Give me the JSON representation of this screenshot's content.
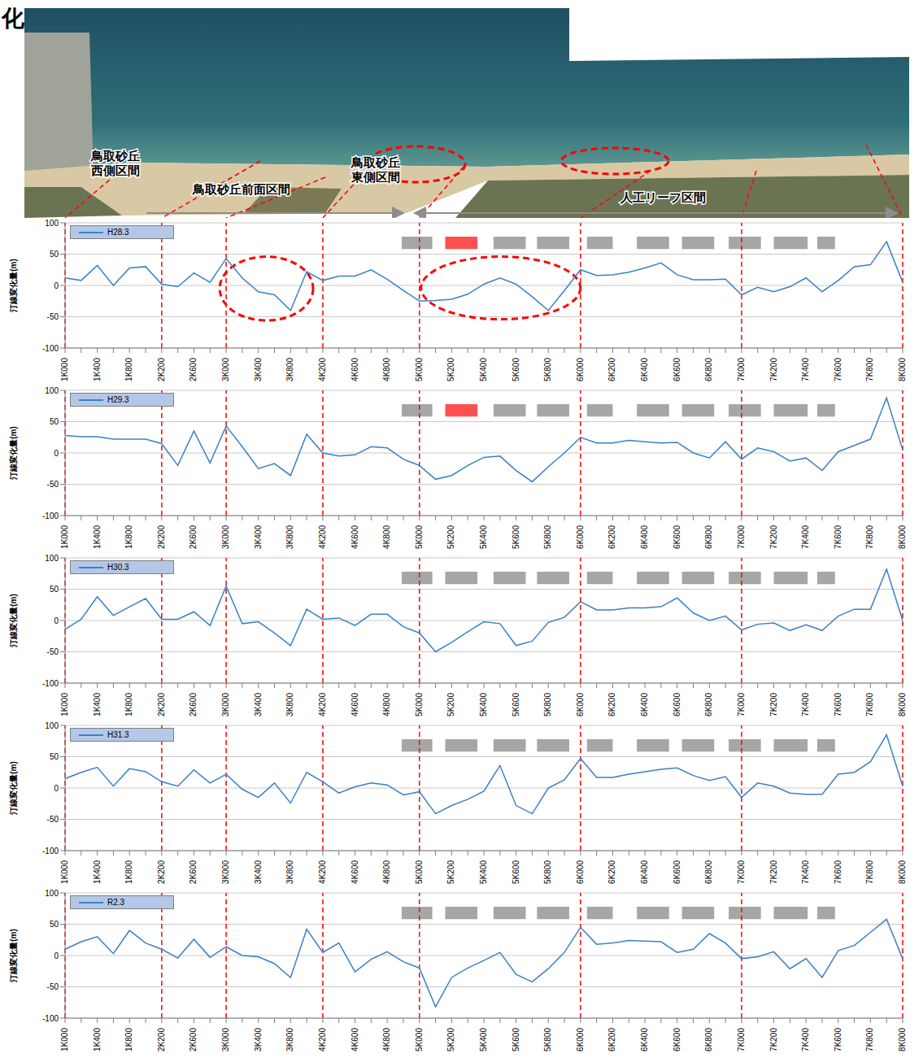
{
  "photo": {
    "heading": "化",
    "sections": [
      {
        "lines": [
          "鳥取砂丘",
          "西側区間"
        ]
      },
      {
        "lines": [
          "鳥取砂丘前面区間"
        ]
      },
      {
        "lines": [
          "鳥取砂丘",
          "東側区間"
        ]
      },
      {
        "lines": [
          "人工リーフ区間"
        ]
      }
    ]
  },
  "chart_data": [
    {
      "type": "line",
      "y_label": "汀線変化量(m)",
      "categories": [
        "1K000",
        null,
        "1K400",
        null,
        "1K800",
        null,
        "2K200",
        null,
        "2K600",
        null,
        "3K000",
        null,
        "3K400",
        null,
        "3K800",
        null,
        "4K200",
        null,
        "4K600",
        null,
        "4K800",
        null,
        "5K000",
        null,
        "5K200",
        null,
        "5K400",
        null,
        "5K600",
        null,
        "5K800",
        null,
        "6K000",
        null,
        "6K200",
        null,
        "6K400",
        null,
        "6K600",
        null,
        "6K800",
        null,
        "7K000",
        null,
        "7K200",
        null,
        "7K400",
        null,
        "7K600",
        null,
        "7K800",
        null,
        "8K000"
      ],
      "series": [
        {
          "name": "H28.3",
          "color": "#3a80c8",
          "values": [
            12,
            8,
            32,
            0,
            28,
            30,
            2,
            -2,
            20,
            5,
            43,
            12,
            -10,
            -15,
            -40,
            22,
            8,
            15,
            15,
            25,
            10,
            -8,
            -25,
            -24,
            -22,
            -14,
            2,
            12,
            2,
            -18,
            -40,
            -8,
            25,
            16,
            17,
            21,
            28,
            36,
            17,
            9,
            9,
            10,
            -15,
            -3,
            -10,
            -2,
            12,
            -10,
            8,
            30,
            33,
            70,
            5
          ]
        }
      ],
      "ylim": [
        -100,
        100
      ],
      "yticks": [
        -100,
        -50,
        0,
        50,
        100
      ],
      "grid": true,
      "legend": "upper left",
      "boundaries": [
        "1K000",
        "2K200",
        "3K000",
        "4K200",
        "5K000",
        "6K000",
        "7K000",
        "8K000"
      ],
      "reefs": [
        {
          "start": 20.9,
          "end": 22.8,
          "color": "#a6a6a6"
        },
        {
          "start": 23.6,
          "end": 25.6,
          "color": "#ff5050"
        },
        {
          "start": 26.6,
          "end": 28.6,
          "color": "#a6a6a6"
        },
        {
          "start": 29.3,
          "end": 31.3,
          "color": "#a6a6a6"
        },
        {
          "start": 32.4,
          "end": 34.0,
          "color": "#a6a6a6"
        },
        {
          "start": 35.5,
          "end": 37.5,
          "color": "#a6a6a6"
        },
        {
          "start": 38.3,
          "end": 40.3,
          "color": "#a6a6a6"
        },
        {
          "start": 41.2,
          "end": 43.2,
          "color": "#a6a6a6"
        },
        {
          "start": 44.0,
          "end": 46.1,
          "color": "#a6a6a6"
        },
        {
          "start": 46.7,
          "end": 47.8,
          "color": "#a6a6a6"
        }
      ]
    },
    {
      "type": "line",
      "y_label": "汀線変化量(m)",
      "categories": [
        "1K000",
        null,
        "1K400",
        null,
        "1K800",
        null,
        "2K200",
        null,
        "2K600",
        null,
        "3K000",
        null,
        "3K400",
        null,
        "3K800",
        null,
        "4K200",
        null,
        "4K600",
        null,
        "4K800",
        null,
        "5K000",
        null,
        "5K200",
        null,
        "5K400",
        null,
        "5K600",
        null,
        "5K800",
        null,
        "6K000",
        null,
        "6K200",
        null,
        "6K400",
        null,
        "6K600",
        null,
        "6K800",
        null,
        "7K000",
        null,
        "7K200",
        null,
        "7K400",
        null,
        "7K600",
        null,
        "7K800",
        null,
        "8K000"
      ],
      "series": [
        {
          "name": "H29.3",
          "color": "#3a80c8",
          "values": [
            28,
            26,
            26,
            22,
            22,
            22,
            15,
            -20,
            35,
            -16,
            43,
            10,
            -25,
            -17,
            -36,
            30,
            0,
            -5,
            -3,
            10,
            8,
            -10,
            -20,
            -42,
            -36,
            -20,
            -7,
            -5,
            -28,
            -46,
            -22,
            0,
            25,
            16,
            16,
            20,
            18,
            16,
            17,
            0,
            -8,
            18,
            -10,
            8,
            2,
            -13,
            -8,
            -28,
            2,
            12,
            22,
            88,
            5
          ]
        }
      ],
      "ylim": [
        -100,
        100
      ],
      "yticks": [
        -100,
        -50,
        0,
        50,
        100
      ],
      "grid": true,
      "legend": "upper left",
      "boundaries": [
        "1K000",
        "2K200",
        "3K000",
        "4K200",
        "5K000",
        "6K000",
        "7K000",
        "8K000"
      ],
      "reefs": [
        {
          "start": 20.9,
          "end": 22.8,
          "color": "#a6a6a6"
        },
        {
          "start": 23.6,
          "end": 25.6,
          "color": "#ff5050"
        },
        {
          "start": 26.6,
          "end": 28.6,
          "color": "#a6a6a6"
        },
        {
          "start": 29.3,
          "end": 31.3,
          "color": "#a6a6a6"
        },
        {
          "start": 32.4,
          "end": 34.0,
          "color": "#a6a6a6"
        },
        {
          "start": 35.5,
          "end": 37.5,
          "color": "#a6a6a6"
        },
        {
          "start": 38.3,
          "end": 40.3,
          "color": "#a6a6a6"
        },
        {
          "start": 41.2,
          "end": 43.2,
          "color": "#a6a6a6"
        },
        {
          "start": 44.0,
          "end": 46.1,
          "color": "#a6a6a6"
        },
        {
          "start": 46.7,
          "end": 47.8,
          "color": "#a6a6a6"
        }
      ]
    },
    {
      "type": "line",
      "y_label": "汀線変化量(m)",
      "categories": [
        "1K000",
        null,
        "1K400",
        null,
        "1K800",
        null,
        "2K200",
        null,
        "2K600",
        null,
        "3K000",
        null,
        "3K400",
        null,
        "3K800",
        null,
        "4K200",
        null,
        "4K600",
        null,
        "4K800",
        null,
        "5K000",
        null,
        "5K200",
        null,
        "5K400",
        null,
        "5K600",
        null,
        "5K800",
        null,
        "6K000",
        null,
        "6K200",
        null,
        "6K400",
        null,
        "6K600",
        null,
        "6K800",
        null,
        "7K000",
        null,
        "7K200",
        null,
        "7K400",
        null,
        "7K600",
        null,
        "7K800",
        null,
        "8K000"
      ],
      "series": [
        {
          "name": "H30.3",
          "color": "#3a80c8",
          "values": [
            -14,
            2,
            38,
            8,
            22,
            35,
            2,
            2,
            14,
            -8,
            55,
            -5,
            -2,
            -20,
            -40,
            18,
            2,
            4,
            -8,
            10,
            10,
            -10,
            -20,
            -50,
            -35,
            -18,
            -2,
            -5,
            -40,
            -33,
            -3,
            5,
            30,
            17,
            17,
            20,
            20,
            22,
            36,
            12,
            0,
            7,
            -15,
            -6,
            -4,
            -16,
            -7,
            -16,
            7,
            18,
            18,
            82,
            0
          ]
        }
      ],
      "ylim": [
        -100,
        100
      ],
      "yticks": [
        -100,
        -50,
        0,
        50,
        100
      ],
      "grid": true,
      "legend": "upper left",
      "boundaries": [
        "1K000",
        "2K200",
        "3K000",
        "4K200",
        "5K000",
        "6K000",
        "7K000",
        "8K000"
      ],
      "reefs": [
        {
          "start": 20.9,
          "end": 22.8,
          "color": "#a6a6a6"
        },
        {
          "start": 23.6,
          "end": 25.6,
          "color": "#a6a6a6"
        },
        {
          "start": 26.6,
          "end": 28.6,
          "color": "#a6a6a6"
        },
        {
          "start": 29.3,
          "end": 31.3,
          "color": "#a6a6a6"
        },
        {
          "start": 32.4,
          "end": 34.0,
          "color": "#a6a6a6"
        },
        {
          "start": 35.5,
          "end": 37.5,
          "color": "#a6a6a6"
        },
        {
          "start": 38.3,
          "end": 40.3,
          "color": "#a6a6a6"
        },
        {
          "start": 41.2,
          "end": 43.2,
          "color": "#a6a6a6"
        },
        {
          "start": 44.0,
          "end": 46.1,
          "color": "#a6a6a6"
        },
        {
          "start": 46.7,
          "end": 47.8,
          "color": "#a6a6a6"
        }
      ]
    },
    {
      "type": "line",
      "y_label": "汀線変化量(m)",
      "categories": [
        "1K000",
        null,
        "1K400",
        null,
        "1K800",
        null,
        "2K200",
        null,
        "2K600",
        null,
        "3K000",
        null,
        "3K400",
        null,
        "3K800",
        null,
        "4K200",
        null,
        "4K600",
        null,
        "4K800",
        null,
        "5K000",
        null,
        "5K200",
        null,
        "5K400",
        null,
        "5K600",
        null,
        "5K800",
        null,
        "6K000",
        null,
        "6K200",
        null,
        "6K400",
        null,
        "6K600",
        null,
        "6K800",
        null,
        "7K000",
        null,
        "7K200",
        null,
        "7K400",
        null,
        "7K600",
        null,
        "7K800",
        null,
        "8K000"
      ],
      "series": [
        {
          "name": "H31.3",
          "color": "#3a80c8",
          "values": [
            15,
            25,
            33,
            3,
            31,
            26,
            10,
            3,
            29,
            8,
            22,
            -2,
            -15,
            8,
            -24,
            25,
            10,
            -8,
            2,
            8,
            5,
            -11,
            -6,
            -41,
            -28,
            -18,
            -5,
            36,
            -28,
            -41,
            0,
            13,
            47,
            17,
            17,
            22,
            26,
            30,
            32,
            20,
            12,
            18,
            -15,
            8,
            3,
            -8,
            -10,
            -10,
            22,
            25,
            42,
            85,
            3
          ]
        }
      ],
      "ylim": [
        -100,
        100
      ],
      "yticks": [
        -100,
        -50,
        0,
        50,
        100
      ],
      "grid": true,
      "legend": "upper left",
      "boundaries": [
        "1K000",
        "2K200",
        "3K000",
        "4K200",
        "5K000",
        "6K000",
        "7K000",
        "8K000"
      ],
      "reefs": [
        {
          "start": 20.9,
          "end": 22.8,
          "color": "#a6a6a6"
        },
        {
          "start": 23.6,
          "end": 25.6,
          "color": "#a6a6a6"
        },
        {
          "start": 26.6,
          "end": 28.6,
          "color": "#a6a6a6"
        },
        {
          "start": 29.3,
          "end": 31.3,
          "color": "#a6a6a6"
        },
        {
          "start": 32.4,
          "end": 34.0,
          "color": "#a6a6a6"
        },
        {
          "start": 35.5,
          "end": 37.5,
          "color": "#a6a6a6"
        },
        {
          "start": 38.3,
          "end": 40.3,
          "color": "#a6a6a6"
        },
        {
          "start": 41.2,
          "end": 43.2,
          "color": "#a6a6a6"
        },
        {
          "start": 44.0,
          "end": 46.1,
          "color": "#a6a6a6"
        },
        {
          "start": 46.7,
          "end": 47.8,
          "color": "#a6a6a6"
        }
      ]
    },
    {
      "type": "line",
      "y_label": "汀線変化量(m)",
      "categories": [
        "1K000",
        null,
        "1K400",
        null,
        "1K800",
        null,
        "2K200",
        null,
        "2K600",
        null,
        "3K000",
        null,
        "3K400",
        null,
        "3K800",
        null,
        "4K200",
        null,
        "4K600",
        null,
        "4K800",
        null,
        "5K000",
        null,
        "5K200",
        null,
        "5K400",
        null,
        "5K600",
        null,
        "5K800",
        null,
        "6K000",
        null,
        "6K200",
        null,
        "6K400",
        null,
        "6K600",
        null,
        "6K800",
        null,
        "7K000",
        null,
        "7K200",
        null,
        "7K400",
        null,
        "7K600",
        null,
        "7K800",
        null,
        "8K000"
      ],
      "series": [
        {
          "name": "R2.3",
          "color": "#3a80c8",
          "values": [
            10,
            22,
            30,
            3,
            40,
            20,
            10,
            -4,
            26,
            -3,
            14,
            0,
            -2,
            -13,
            -35,
            42,
            5,
            20,
            -26,
            -6,
            6,
            -10,
            -20,
            -82,
            -35,
            -20,
            -8,
            5,
            -30,
            -42,
            -21,
            5,
            45,
            18,
            20,
            24,
            23,
            22,
            5,
            10,
            35,
            20,
            -5,
            -2,
            6,
            -21,
            -5,
            -35,
            8,
            16,
            37,
            58,
            -5
          ]
        }
      ],
      "ylim": [
        -100,
        100
      ],
      "yticks": [
        -100,
        -50,
        0,
        50,
        100
      ],
      "grid": true,
      "legend": "upper left",
      "boundaries": [
        "1K000",
        "2K200",
        "3K000",
        "4K200",
        "5K000",
        "6K000",
        "7K000",
        "8K000"
      ],
      "reefs": [
        {
          "start": 20.9,
          "end": 22.8,
          "color": "#a6a6a6"
        },
        {
          "start": 23.6,
          "end": 25.6,
          "color": "#a6a6a6"
        },
        {
          "start": 26.6,
          "end": 28.6,
          "color": "#a6a6a6"
        },
        {
          "start": 29.3,
          "end": 31.3,
          "color": "#a6a6a6"
        },
        {
          "start": 32.4,
          "end": 34.0,
          "color": "#a6a6a6"
        },
        {
          "start": 35.5,
          "end": 37.5,
          "color": "#a6a6a6"
        },
        {
          "start": 38.3,
          "end": 40.3,
          "color": "#a6a6a6"
        },
        {
          "start": 41.2,
          "end": 43.2,
          "color": "#a6a6a6"
        },
        {
          "start": 44.0,
          "end": 46.1,
          "color": "#a6a6a6"
        },
        {
          "start": 46.7,
          "end": 47.8,
          "color": "#a6a6a6"
        }
      ]
    }
  ]
}
